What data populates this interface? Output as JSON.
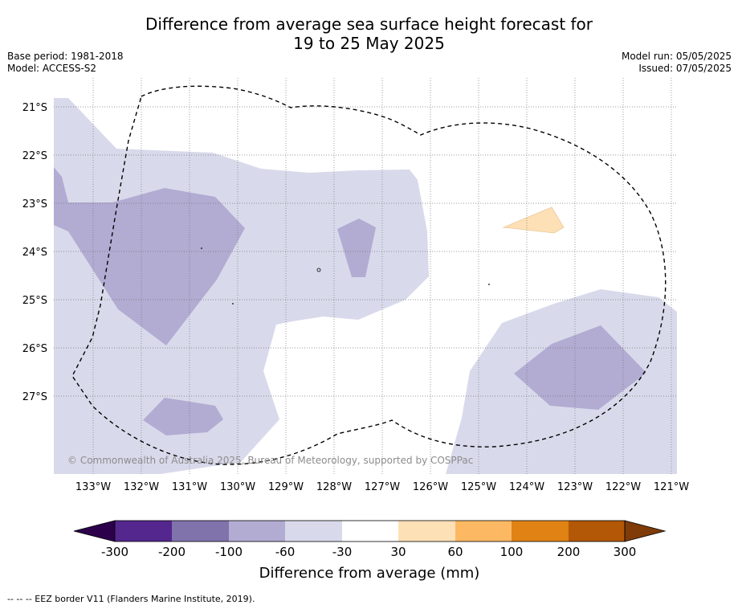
{
  "title_line1": "Difference from average sea surface height forecast for",
  "title_line2": "19 to 25 May 2025",
  "base_period": "Base period: 1981-2018",
  "model": "Model: ACCESS-S2",
  "model_run": "Model run: 05/05/2025",
  "issued": "Issued: 07/05/2025",
  "copyright": "© Commonwealth of Australia 2025, Bureau of Meteorology, supported by COSPPac",
  "lat_labels": [
    "21°S",
    "22°S",
    "23°S",
    "24°S",
    "25°S",
    "26°S",
    "27°S"
  ],
  "lon_labels": [
    "133°W",
    "132°W",
    "131°W",
    "130°W",
    "129°W",
    "128°W",
    "127°W",
    "126°W",
    "125°W",
    "124°W",
    "123°W",
    "122°W",
    "121°W"
  ],
  "colorbar": {
    "label": "Difference from average (mm)",
    "ticks": [
      "-300",
      "-200",
      "-100",
      "-60",
      "-30",
      "30",
      "60",
      "100",
      "200",
      "300"
    ],
    "colors": [
      "#54278f",
      "#8073ac",
      "#b2abd2",
      "#d8daeb",
      "#ffffff",
      "#fee0b6",
      "#fdb863",
      "#e08214",
      "#b35806"
    ],
    "under_color": "#2d004b",
    "over_color": "#7f3b08"
  },
  "field_colors": {
    "light_purple": "#d8daeb",
    "mid_purple": "#b2abd2",
    "light_orange": "#fee0b6"
  },
  "legend_note": "--  --  -- EEZ border V11 (Flanders Marine Institute, 2019)."
}
